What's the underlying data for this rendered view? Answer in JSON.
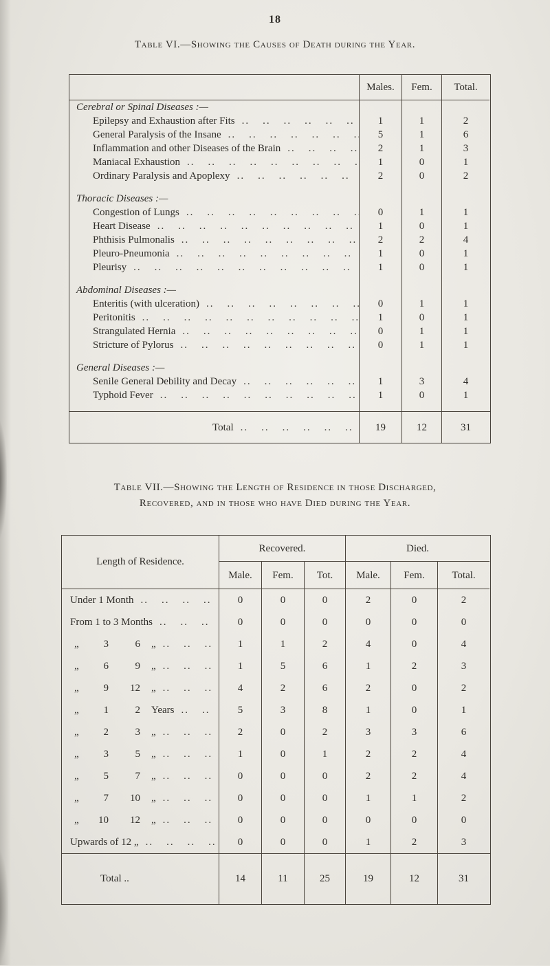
{
  "page": {
    "number": "18"
  },
  "leader_unit": "..",
  "table6": {
    "caption": "Table VI.—Showing the Causes of Death during the Year.",
    "columns": [
      "Males.",
      "Fem.",
      "Total."
    ],
    "sections": [
      {
        "heading": "Cerebral or Spinal Diseases :—",
        "items": [
          {
            "label": "Epilepsy and Exhaustion after Fits",
            "m": "1",
            "f": "1",
            "t": "2"
          },
          {
            "label": "General Paralysis of the Insane",
            "m": "5",
            "f": "1",
            "t": "6"
          },
          {
            "label": "Inflammation and other Diseases of the Brain",
            "m": "2",
            "f": "1",
            "t": "3"
          },
          {
            "label": "Maniacal Exhaustion",
            "m": "1",
            "f": "0",
            "t": "1"
          },
          {
            "label": "Ordinary Paralysis and Apoplexy",
            "m": "2",
            "f": "0",
            "t": "2"
          }
        ]
      },
      {
        "heading": "Thoracic Diseases :—",
        "items": [
          {
            "label": "Congestion of Lungs",
            "m": "0",
            "f": "1",
            "t": "1"
          },
          {
            "label": "Heart Disease",
            "m": "1",
            "f": "0",
            "t": "1"
          },
          {
            "label": "Phthisis Pulmonalis",
            "m": "2",
            "f": "2",
            "t": "4"
          },
          {
            "label": "Pleuro-Pneumonia",
            "m": "1",
            "f": "0",
            "t": "1"
          },
          {
            "label": "Pleurisy",
            "m": "1",
            "f": "0",
            "t": "1"
          }
        ]
      },
      {
        "heading": "Abdominal Diseases :—",
        "items": [
          {
            "label": "Enteritis (with ulceration)",
            "m": "0",
            "f": "1",
            "t": "1"
          },
          {
            "label": "Peritonitis",
            "m": "1",
            "f": "0",
            "t": "1"
          },
          {
            "label": "Strangulated Hernia",
            "m": "0",
            "f": "1",
            "t": "1"
          },
          {
            "label": "Stricture of Pylorus",
            "m": "0",
            "f": "1",
            "t": "1"
          }
        ]
      },
      {
        "heading": "General Diseases :—",
        "items": [
          {
            "label": "Senile General Debility and Decay",
            "m": "1",
            "f": "3",
            "t": "4"
          },
          {
            "label": "Typhoid Fever",
            "m": "1",
            "f": "0",
            "t": "1"
          }
        ]
      }
    ],
    "total": {
      "label": "Total",
      "m": "19",
      "f": "12",
      "t": "31"
    }
  },
  "table7": {
    "caption_line1": "Table VII.—Showing the Length of Residence in those Discharged,",
    "caption_line2": "Recovered, and in those who have Died during the Year.",
    "col1_header": "Length of Residence.",
    "groups": [
      "Recovered.",
      "Died."
    ],
    "sub_headers": [
      "Male.",
      "Fem.",
      "Tot.",
      "Male.",
      "Fem.",
      "Total."
    ],
    "rows": [
      {
        "text": "Under 1 Month",
        "rec": [
          "0",
          "0",
          "0"
        ],
        "died": [
          "2",
          "0",
          "2"
        ]
      },
      {
        "text": "From 1 to 3 Months",
        "rec": [
          "0",
          "0",
          "0"
        ],
        "died": [
          "0",
          "0",
          "0"
        ]
      },
      {
        "parts": [
          "„",
          "3",
          "6",
          "„"
        ],
        "rec": [
          "1",
          "1",
          "2"
        ],
        "died": [
          "4",
          "0",
          "4"
        ]
      },
      {
        "parts": [
          "„",
          "6",
          "9",
          "„"
        ],
        "rec": [
          "1",
          "5",
          "6"
        ],
        "died": [
          "1",
          "2",
          "3"
        ]
      },
      {
        "parts": [
          "„",
          "9",
          "12",
          "„"
        ],
        "rec": [
          "4",
          "2",
          "6"
        ],
        "died": [
          "2",
          "0",
          "2"
        ]
      },
      {
        "parts": [
          "„",
          "1",
          "2",
          "Years"
        ],
        "rec": [
          "5",
          "3",
          "8"
        ],
        "died": [
          "1",
          "0",
          "1"
        ]
      },
      {
        "parts": [
          "„",
          "2",
          "3",
          "„"
        ],
        "rec": [
          "2",
          "0",
          "2"
        ],
        "died": [
          "3",
          "3",
          "6"
        ]
      },
      {
        "parts": [
          "„",
          "3",
          "5",
          "„"
        ],
        "rec": [
          "1",
          "0",
          "1"
        ],
        "died": [
          "2",
          "2",
          "4"
        ]
      },
      {
        "parts": [
          "„",
          "5",
          "7",
          "„"
        ],
        "rec": [
          "0",
          "0",
          "0"
        ],
        "died": [
          "2",
          "2",
          "4"
        ]
      },
      {
        "parts": [
          "„",
          "7",
          "10",
          "„"
        ],
        "rec": [
          "0",
          "0",
          "0"
        ],
        "died": [
          "1",
          "1",
          "2"
        ]
      },
      {
        "parts": [
          "„",
          "10",
          "12",
          "„"
        ],
        "rec": [
          "0",
          "0",
          "0"
        ],
        "died": [
          "0",
          "0",
          "0"
        ]
      },
      {
        "text": "Upwards of 12   „",
        "rec": [
          "0",
          "0",
          "0"
        ],
        "died": [
          "1",
          "2",
          "3"
        ]
      }
    ],
    "total": {
      "label": "Total ..",
      "rec": [
        "14",
        "11",
        "25"
      ],
      "died": [
        "19",
        "12",
        "31"
      ]
    }
  }
}
